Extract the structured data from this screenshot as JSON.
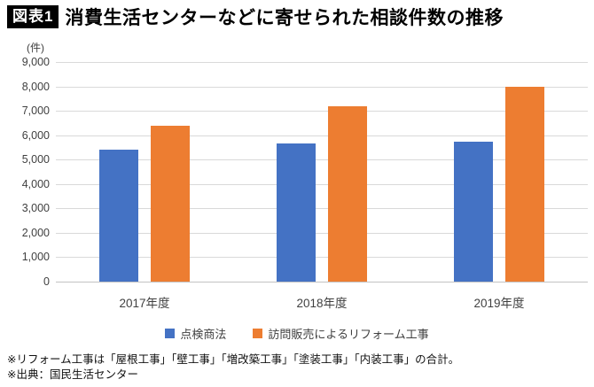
{
  "header": {
    "badge": "図表1",
    "title": "消費生活センターなどに寄せられた相談件数の推移"
  },
  "chart_data": {
    "type": "bar",
    "title": "消費生活センターなどに寄せられた相談件数の推移",
    "unit_label": "(件)",
    "categories": [
      "2017年度",
      "2018年度",
      "2019年度"
    ],
    "series": [
      {
        "name": "点検商法",
        "color": "#4472C4",
        "values": [
          5400,
          5650,
          5750
        ]
      },
      {
        "name": "訪問販売によるリフォーム工事",
        "color": "#ED7D31",
        "values": [
          6400,
          7200,
          8000
        ]
      }
    ],
    "xlabel": "",
    "ylabel": "件",
    "ylim": [
      0,
      9000
    ],
    "ytick_step": 1000,
    "ytick_labels": [
      "9,000",
      "8,000",
      "7,000",
      "6,000",
      "5,000",
      "4,000",
      "3,000",
      "2,000",
      "1,000",
      "0"
    ],
    "grid": true,
    "legend_position": "bottom",
    "colors": {
      "grid": "#d9d9d9",
      "axis_text": "#404040"
    }
  },
  "footnotes": [
    "※リフォーム工事は「屋根工事」「壁工事」「増改築工事」「塗装工事」「内装工事」の合計。",
    "※出典：国民生活センター"
  ]
}
